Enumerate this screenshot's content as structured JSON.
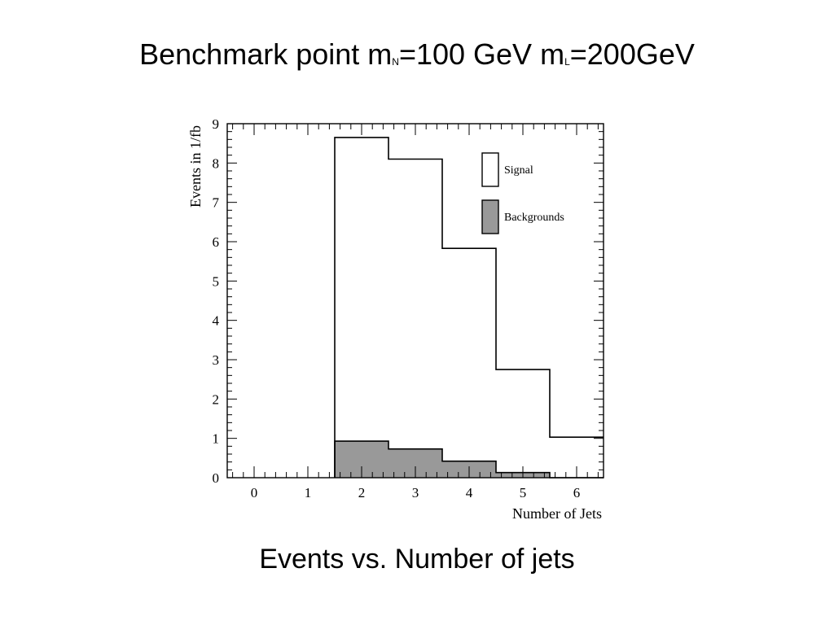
{
  "slide": {
    "title_prefix": "Benchmark point m",
    "title_sub1": "N",
    "title_mid": "=100 GeV m",
    "title_sub2": "L",
    "title_suffix": "=200GeV",
    "caption": "Events vs. Number of jets"
  },
  "chart_data": {
    "type": "bar",
    "title": "",
    "xlabel": "Number of Jets",
    "ylabel": "Events in 1/fb",
    "xlim": [
      -0.5,
      6.5
    ],
    "ylim": [
      0,
      9
    ],
    "x_ticks": [
      0,
      1,
      2,
      3,
      4,
      5,
      6
    ],
    "y_ticks": [
      0,
      1,
      2,
      3,
      4,
      5,
      6,
      7,
      8,
      9
    ],
    "categories": [
      2,
      3,
      4,
      5,
      6
    ],
    "series": [
      {
        "name": "Signal",
        "style": "open",
        "color": "#ffffff",
        "values": [
          8.65,
          8.1,
          5.83,
          2.75,
          1.03
        ]
      },
      {
        "name": "Backgrounds",
        "style": "filled",
        "color": "#999999",
        "values": [
          0.93,
          0.73,
          0.42,
          0.13,
          0.0
        ]
      }
    ],
    "legend_position": "top-right",
    "grid": false
  }
}
